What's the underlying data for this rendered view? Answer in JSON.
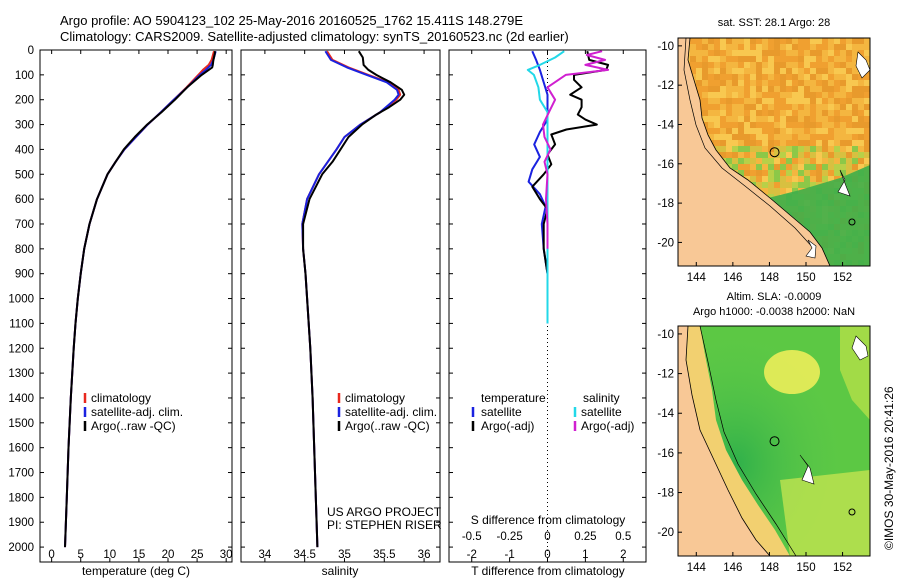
{
  "figure": {
    "title_line1": "Argo profile: AO 5904123_102 25-May-2016 20160525_1762 15.411S 148.279E",
    "title_line2": "Climatology: CARS2009. Satellite-adjusted climatology: synTS_20160523.nc (2d earlier)",
    "credit": "©IMOS 30-May-2016 20:41:26",
    "project_line1": "US ARGO PROJECT",
    "project_line2": "PI: STEPHEN RISER"
  },
  "colors": {
    "climatology": "#e8281e",
    "satellite": "#1a22e0",
    "argo": "#000000",
    "satellite_s": "#22d8e8",
    "argo_s": "#d020d0",
    "land": "#f8c896",
    "map_border": "#000000"
  },
  "chart_data": [
    {
      "type": "line",
      "xlabel": "temperature (deg C)",
      "ylabel": "",
      "xlim": [
        -2,
        31
      ],
      "ylim": [
        2060,
        0
      ],
      "x_ticks": [
        "0",
        "5",
        "10",
        "15",
        "20",
        "25",
        "30"
      ],
      "x_tick_values": [
        0,
        5,
        10,
        15,
        20,
        25,
        30
      ],
      "y_ticks": [
        "0",
        "100",
        "200",
        "300",
        "400",
        "500",
        "600",
        "700",
        "800",
        "900",
        "1000",
        "1100",
        "1200",
        "1300",
        "1400",
        "1500",
        "1600",
        "1700",
        "1800",
        "1900",
        "2000"
      ],
      "y_tick_values": [
        0,
        100,
        200,
        300,
        400,
        500,
        600,
        700,
        800,
        900,
        1000,
        1100,
        1200,
        1300,
        1400,
        1500,
        1600,
        1700,
        1800,
        1900,
        2000
      ],
      "legend": [
        "climatology",
        "satellite-adj. clim.",
        "Argo(..raw -QC)"
      ],
      "legend_position": "lower-left",
      "series": [
        {
          "name": "climatology",
          "depth": [
            5,
            40,
            60,
            80,
            100,
            150,
            200,
            250,
            300,
            350,
            400,
            450,
            500,
            600,
            700,
            800,
            900,
            1000,
            1100,
            1200,
            1400,
            1600,
            1800,
            2000
          ],
          "values": [
            27.9,
            27.5,
            27.0,
            26.0,
            25.2,
            23.2,
            21.0,
            18.8,
            16.5,
            14.5,
            12.5,
            11.0,
            9.6,
            7.8,
            6.5,
            5.6,
            5.0,
            4.5,
            4.1,
            3.8,
            3.3,
            2.9,
            2.6,
            2.3
          ]
        },
        {
          "name": "satellite-adj. clim.",
          "depth": [
            5,
            40,
            60,
            80,
            100,
            150,
            200,
            250,
            300,
            350,
            400,
            450,
            500,
            600,
            700,
            800,
            900,
            1000,
            1100,
            1200,
            1400,
            1600,
            1800,
            2000
          ],
          "values": [
            28.2,
            27.8,
            27.4,
            26.5,
            25.5,
            23.3,
            21.0,
            18.8,
            16.5,
            14.5,
            12.5,
            11.0,
            9.6,
            7.8,
            6.5,
            5.6,
            5.0,
            4.5,
            4.1,
            3.8,
            3.3,
            2.9,
            2.6,
            2.3
          ]
        },
        {
          "name": "Argo(..raw -QC)",
          "depth": [
            5,
            20,
            40,
            60,
            70,
            80,
            100,
            150,
            200,
            250,
            300,
            350,
            400,
            450,
            500,
            600,
            700,
            800,
            900,
            1000,
            1100,
            1200,
            1400,
            1600,
            1800,
            2000
          ],
          "values": [
            28.1,
            28.0,
            27.8,
            27.7,
            27.6,
            27.0,
            25.8,
            23.3,
            21.2,
            18.9,
            16.4,
            14.3,
            12.4,
            11.0,
            9.6,
            7.8,
            6.5,
            5.6,
            5.0,
            4.5,
            4.1,
            3.8,
            3.3,
            2.9,
            2.6,
            2.3
          ]
        }
      ]
    },
    {
      "type": "line",
      "xlabel": "salinity",
      "xlim": [
        33.7,
        36.2
      ],
      "ylim": [
        2060,
        0
      ],
      "x_ticks": [
        "34",
        "34.5",
        "35",
        "35.5",
        "36"
      ],
      "x_tick_values": [
        34,
        34.5,
        35,
        35.5,
        36
      ],
      "legend": [
        "climatology",
        "satellite-adj. clim.",
        "Argo(..raw -QC)"
      ],
      "legend_position": "lower-right",
      "series": [
        {
          "name": "climatology",
          "depth": [
            5,
            40,
            70,
            100,
            130,
            160,
            180,
            200,
            250,
            300,
            350,
            400,
            500,
            600,
            700,
            800,
            900,
            1000,
            1200,
            1400,
            1600,
            1800,
            2000
          ],
          "values": [
            34.78,
            34.85,
            35.05,
            35.3,
            35.55,
            35.68,
            35.7,
            35.65,
            35.45,
            35.2,
            35.0,
            34.9,
            34.68,
            34.53,
            34.47,
            34.48,
            34.51,
            34.53,
            34.57,
            34.6,
            34.62,
            34.64,
            34.66
          ]
        },
        {
          "name": "satellite-adj. clim.",
          "depth": [
            5,
            40,
            70,
            100,
            130,
            160,
            180,
            200,
            250,
            300,
            350,
            400,
            500,
            600,
            700,
            800,
            900,
            1000,
            1200,
            1400,
            1600,
            1800,
            2000
          ],
          "values": [
            34.76,
            34.83,
            35.03,
            35.28,
            35.53,
            35.66,
            35.68,
            35.63,
            35.45,
            35.2,
            35.0,
            34.9,
            34.68,
            34.53,
            34.47,
            34.48,
            34.51,
            34.53,
            34.57,
            34.6,
            34.62,
            34.64,
            34.66
          ]
        },
        {
          "name": "Argo(..raw -QC)",
          "depth": [
            5,
            30,
            60,
            80,
            100,
            130,
            160,
            180,
            200,
            230,
            260,
            300,
            350,
            400,
            450,
            500,
            600,
            700,
            800,
            900,
            1000,
            1200,
            1400,
            1600,
            1800,
            2000
          ],
          "values": [
            35.18,
            35.23,
            35.24,
            35.3,
            35.4,
            35.58,
            35.72,
            35.75,
            35.7,
            35.56,
            35.4,
            35.22,
            35.05,
            34.95,
            34.85,
            34.72,
            34.56,
            34.48,
            34.48,
            34.51,
            34.53,
            34.57,
            34.6,
            34.62,
            34.64,
            34.66
          ]
        }
      ]
    },
    {
      "type": "line",
      "xlabel": "T difference from climatology",
      "x_secondary_label": "S difference from climatology",
      "xlim": [
        -2.6,
        2.6
      ],
      "ylim": [
        2060,
        0
      ],
      "x_ticks": [
        "-2",
        "-1",
        "0",
        "1",
        "2"
      ],
      "x_tick_values": [
        -2,
        -1,
        0,
        1,
        2
      ],
      "x2_ticks": [
        "-0.5",
        "-0.25",
        "0",
        "0.25",
        "0.5"
      ],
      "x2_tick_values": [
        -0.5,
        -0.25,
        0,
        0.25,
        0.5
      ],
      "legend_temperature_title": "temperature",
      "legend_salinity_title": "salinity",
      "legend_temperature": [
        "satellite",
        "Argo(-adj)"
      ],
      "legend_salinity": [
        "satellite",
        "Argo(-adj)"
      ],
      "legend_position": "lower-center",
      "series": [
        {
          "name": "satellite",
          "group": "temperature",
          "depth": [
            5,
            40,
            80,
            130,
            180,
            230,
            280,
            330,
            380,
            430,
            480,
            530,
            580,
            630,
            700,
            800,
            900,
            1000,
            1100
          ],
          "values": [
            -0.4,
            -0.3,
            -0.2,
            -0.1,
            0.0,
            0.0,
            0.0,
            -0.2,
            -0.35,
            -0.2,
            -0.4,
            -0.5,
            -0.2,
            -0.05,
            -0.15,
            -0.1,
            0.0,
            0.0,
            0.0
          ]
        },
        {
          "name": "Argo(-adj)",
          "group": "temperature",
          "depth": [
            5,
            40,
            60,
            80,
            100,
            120,
            150,
            180,
            200,
            230,
            260,
            280,
            300,
            320,
            340,
            380,
            420,
            460,
            500,
            550,
            600,
            640,
            700,
            800,
            900,
            1000
          ],
          "values": [
            1.05,
            1.1,
            1.6,
            1.55,
            0.7,
            0.7,
            0.9,
            0.6,
            0.9,
            0.9,
            0.8,
            1.0,
            1.3,
            0.5,
            0.1,
            0.2,
            0.0,
            0.1,
            -0.1,
            -0.4,
            -0.2,
            0.0,
            -0.1,
            -0.1,
            0.0,
            0.0
          ]
        },
        {
          "name": "satellite",
          "group": "salinity",
          "depth": [
            5,
            30,
            60,
            80,
            100,
            150,
            200,
            250,
            300,
            400,
            500,
            600,
            700,
            800,
            900,
            1000,
            1100
          ],
          "values": [
            0.11,
            0.05,
            -0.05,
            -0.13,
            -0.09,
            -0.06,
            -0.05,
            0.0,
            0.0,
            0.0,
            0.0,
            0.0,
            0.0,
            0.0,
            0.0,
            0.0,
            0.0
          ]
        },
        {
          "name": "Argo(-adj)",
          "group": "salinity",
          "depth": [
            5,
            20,
            40,
            60,
            80,
            100,
            150,
            200,
            250,
            300,
            350,
            400,
            450,
            500,
            600,
            700,
            800
          ],
          "values": [
            0.36,
            0.26,
            0.38,
            0.25,
            0.4,
            0.12,
            0.0,
            0.05,
            0.01,
            -0.03,
            -0.02,
            0.02,
            -0.02,
            0.0,
            -0.01,
            0.0,
            0.0
          ]
        }
      ]
    },
    {
      "type": "heatmap",
      "title": "sat. SST: 28.1  Argo: 28",
      "xlim": [
        143,
        153.5
      ],
      "ylim": [
        -21.2,
        -9.6
      ],
      "x_ticks": [
        "144",
        "146",
        "148",
        "150",
        "152"
      ],
      "x_tick_values": [
        144,
        146,
        148,
        150,
        152
      ],
      "y_ticks": [
        "-10",
        "-12",
        "-14",
        "-16",
        "-18",
        "-20"
      ],
      "y_tick_values": [
        -10,
        -12,
        -14,
        -16,
        -18,
        -20
      ],
      "argo_position": [
        148.28,
        -15.41
      ]
    },
    {
      "type": "heatmap",
      "title": "Altim. SLA: -0.0009",
      "subtitle": "Argo h1000: -0.0038 h2000: NaN",
      "xlim": [
        143,
        153.5
      ],
      "ylim": [
        -21.2,
        -9.6
      ],
      "x_ticks": [
        "144",
        "146",
        "148",
        "150",
        "152"
      ],
      "x_tick_values": [
        144,
        146,
        148,
        150,
        152
      ],
      "y_ticks": [
        "-10",
        "-12",
        "-14",
        "-16",
        "-18",
        "-20"
      ],
      "y_tick_values": [
        -10,
        -12,
        -14,
        -16,
        -18,
        -20
      ],
      "argo_position": [
        148.28,
        -15.41
      ]
    }
  ]
}
